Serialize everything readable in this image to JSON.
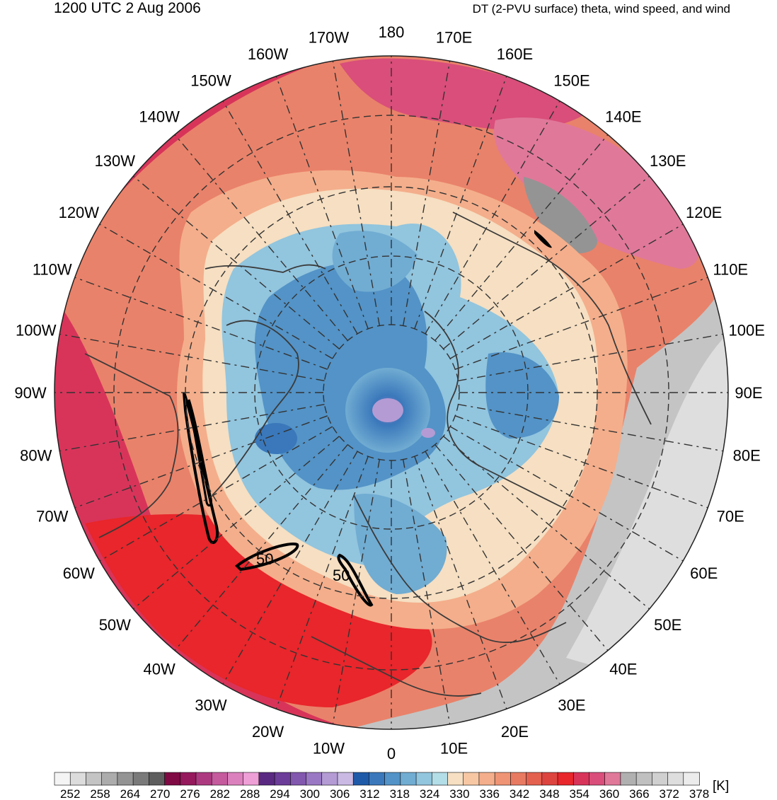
{
  "header": {
    "valid_time": "1200 UTC 2 Aug 2006",
    "description": "DT (2-PVU surface) theta, wind speed, and wind"
  },
  "map": {
    "projection": "north-polar-stereographic",
    "meridian_labels": [
      {
        "lon": 180,
        "text": "180"
      },
      {
        "lon": 170,
        "text": "170E"
      },
      {
        "lon": 160,
        "text": "160E"
      },
      {
        "lon": 150,
        "text": "150E"
      },
      {
        "lon": 140,
        "text": "140E"
      },
      {
        "lon": 130,
        "text": "130E"
      },
      {
        "lon": 120,
        "text": "120E"
      },
      {
        "lon": 110,
        "text": "110E"
      },
      {
        "lon": 100,
        "text": "100E"
      },
      {
        "lon": 90,
        "text": "90E"
      },
      {
        "lon": 80,
        "text": "80E"
      },
      {
        "lon": 70,
        "text": "70E"
      },
      {
        "lon": 60,
        "text": "60E"
      },
      {
        "lon": 50,
        "text": "50E"
      },
      {
        "lon": 40,
        "text": "40E"
      },
      {
        "lon": 30,
        "text": "30E"
      },
      {
        "lon": 20,
        "text": "20E"
      },
      {
        "lon": 10,
        "text": "10E"
      },
      {
        "lon": 0,
        "text": "0"
      },
      {
        "lon": -10,
        "text": "10W"
      },
      {
        "lon": -20,
        "text": "20W"
      },
      {
        "lon": -30,
        "text": "30W"
      },
      {
        "lon": -40,
        "text": "40W"
      },
      {
        "lon": -50,
        "text": "50W"
      },
      {
        "lon": -60,
        "text": "60W"
      },
      {
        "lon": -70,
        "text": "70W"
      },
      {
        "lon": -80,
        "text": "80W"
      },
      {
        "lon": -90,
        "text": "90W"
      },
      {
        "lon": -100,
        "text": "100W"
      },
      {
        "lon": -110,
        "text": "110W"
      },
      {
        "lon": -120,
        "text": "120W"
      },
      {
        "lon": -130,
        "text": "130W"
      },
      {
        "lon": -140,
        "text": "140W"
      },
      {
        "lon": -150,
        "text": "150W"
      },
      {
        "lon": -160,
        "text": "160W"
      },
      {
        "lon": -170,
        "text": "170W"
      }
    ],
    "wind_speed_contour_labels": [
      "50",
      "50"
    ]
  },
  "colorbar": {
    "unit": "[K]",
    "tick_labels": [
      "252",
      "258",
      "264",
      "270",
      "276",
      "282",
      "288",
      "294",
      "300",
      "306",
      "312",
      "318",
      "324",
      "330",
      "336",
      "342",
      "348",
      "354",
      "360",
      "366",
      "372",
      "378"
    ],
    "colors": [
      "#f4f4f4",
      "#dcdcdc",
      "#c4c4c4",
      "#acacac",
      "#949494",
      "#7a7a7a",
      "#5e5e5e",
      "#7f0a44",
      "#95195c",
      "#ad3a80",
      "#c55a9d",
      "#dc80bd",
      "#ee9fd6",
      "#5a2a82",
      "#6c3d99",
      "#8257ae",
      "#9a78c3",
      "#b49bd4",
      "#c9b9e3",
      "#1f5aa8",
      "#3a78bb",
      "#5393c7",
      "#71acd2",
      "#92c5de",
      "#b3dde7",
      "#f6dfc2",
      "#f7c7a4",
      "#f4ae8b",
      "#ef9474",
      "#e97a62",
      "#e4604f",
      "#dd4440",
      "#e8262b",
      "#d8345a",
      "#d94e7a",
      "#e0789a",
      "#b0b0b0",
      "#c0c0c0",
      "#d0d0d0",
      "#dedede",
      "#ececec"
    ]
  }
}
